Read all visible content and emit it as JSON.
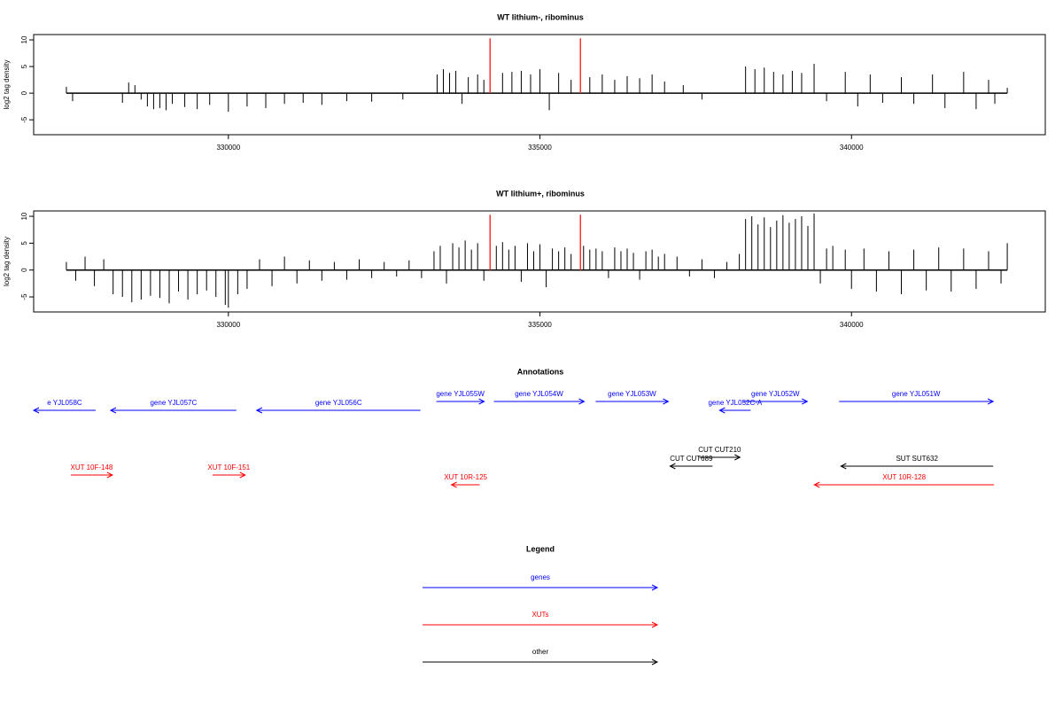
{
  "chart_data": [
    {
      "type": "bar",
      "title": "WT lithium-, ribominus",
      "ylabel": "log2 tag density",
      "color": "#000000",
      "xlim": [
        326875,
        343110
      ],
      "ylim": [
        -7.8,
        11
      ],
      "xticks": [
        330000,
        335000,
        340000
      ],
      "yticks": [
        -5,
        0,
        5,
        10
      ],
      "x": [
        327400,
        327500,
        328300,
        328400,
        328500,
        328600,
        328700,
        328800,
        328900,
        329000,
        329100,
        329300,
        329500,
        329700,
        330000,
        330300,
        330600,
        330900,
        331200,
        331500,
        331900,
        332300,
        332800,
        333350,
        333450,
        333550,
        333650,
        333750,
        333850,
        334000,
        334100,
        334400,
        334550,
        334700,
        334850,
        335000,
        335150,
        335300,
        335500,
        335800,
        336000,
        336200,
        336400,
        336600,
        336800,
        337000,
        337300,
        337600,
        338300,
        338450,
        338600,
        338750,
        338900,
        339050,
        339200,
        339400,
        339600,
        339900,
        340100,
        340300,
        340500,
        340800,
        341000,
        341300,
        341500,
        341800,
        342000,
        342200,
        342300,
        342500
      ],
      "values": [
        1.2,
        -1.5,
        -1.8,
        2.0,
        1.5,
        -1.2,
        -2.5,
        -3.0,
        -2.8,
        -3.2,
        -2.0,
        -2.6,
        -3.0,
        -2.2,
        -3.5,
        -2.5,
        -2.8,
        -2.0,
        -1.8,
        -2.2,
        -1.5,
        -1.6,
        -1.2,
        3.5,
        4.5,
        3.8,
        4.2,
        -2.0,
        3.0,
        3.5,
        2.5,
        3.8,
        4.0,
        4.2,
        3.5,
        4.5,
        -3.2,
        3.8,
        2.5,
        3.0,
        3.5,
        2.5,
        3.2,
        2.8,
        3.5,
        2.2,
        1.5,
        -1.2,
        5.0,
        4.5,
        4.8,
        4.0,
        3.5,
        4.2,
        3.8,
        5.5,
        -1.5,
        4.0,
        -2.5,
        3.5,
        -1.8,
        3.0,
        -2.0,
        3.5,
        -2.8,
        4.0,
        -3.0,
        2.5,
        -2.0,
        1.0
      ],
      "markers": {
        "color": "#ff3030",
        "x": [
          334200,
          335650
        ],
        "values": [
          10.3,
          10.3
        ]
      }
    },
    {
      "type": "bar",
      "title": "WT lithium+, ribominus",
      "ylabel": "log2 tag density",
      "color": "#000000",
      "xlim": [
        326875,
        343110
      ],
      "ylim": [
        -7.8,
        11
      ],
      "xticks": [
        330000,
        335000,
        340000
      ],
      "yticks": [
        -5,
        0,
        5,
        10
      ],
      "x": [
        327400,
        327550,
        327700,
        327850,
        328000,
        328150,
        328300,
        328450,
        328600,
        328750,
        328900,
        329050,
        329200,
        329350,
        329500,
        329650,
        329800,
        329950,
        330000,
        330150,
        330300,
        330500,
        330700,
        330900,
        331100,
        331300,
        331500,
        331700,
        331900,
        332100,
        332300,
        332500,
        332700,
        332900,
        333100,
        333300,
        333400,
        333500,
        333600,
        333700,
        333800,
        333900,
        334000,
        334100,
        334300,
        334400,
        334500,
        334600,
        334700,
        334800,
        334900,
        335000,
        335100,
        335200,
        335300,
        335400,
        335500,
        335700,
        335800,
        335900,
        336000,
        336100,
        336200,
        336300,
        336400,
        336500,
        336600,
        336700,
        336800,
        336900,
        337000,
        337200,
        337400,
        337600,
        337800,
        338000,
        338200,
        338300,
        338400,
        338500,
        338600,
        338700,
        338800,
        338900,
        339000,
        339100,
        339200,
        339300,
        339400,
        339500,
        339600,
        339700,
        339900,
        340000,
        340200,
        340400,
        340600,
        340800,
        341000,
        341200,
        341400,
        341600,
        341800,
        342000,
        342200,
        342400,
        342500
      ],
      "values": [
        1.5,
        -2.0,
        2.5,
        -3.0,
        2.0,
        -4.5,
        -5.0,
        -6.0,
        -5.5,
        -4.8,
        -5.2,
        -6.2,
        -4.0,
        -5.5,
        -4.5,
        -3.8,
        -5.0,
        -6.5,
        -7.0,
        -4.5,
        -3.5,
        2.0,
        -3.0,
        2.5,
        -2.5,
        1.8,
        -2.0,
        1.5,
        -1.8,
        2.0,
        -1.5,
        1.5,
        -1.2,
        1.8,
        -1.5,
        3.5,
        4.5,
        -2.5,
        5.0,
        4.2,
        5.5,
        3.8,
        5.0,
        -2.0,
        4.5,
        5.2,
        3.8,
        4.5,
        -2.2,
        5.0,
        3.5,
        4.8,
        -3.2,
        4.0,
        3.5,
        4.2,
        3.0,
        4.5,
        3.8,
        4.0,
        3.5,
        -1.5,
        4.2,
        3.5,
        4.0,
        3.2,
        -1.8,
        3.5,
        3.8,
        2.5,
        3.0,
        2.5,
        -1.2,
        2.0,
        -1.5,
        1.5,
        3.0,
        9.5,
        10.0,
        8.5,
        9.8,
        8.0,
        9.2,
        10.2,
        8.8,
        9.5,
        10.0,
        8.2,
        10.5,
        -2.5,
        4.0,
        4.5,
        3.8,
        -3.5,
        4.0,
        -4.0,
        3.5,
        -4.5,
        3.8,
        -3.8,
        4.2,
        -4.0,
        4.0,
        -3.5,
        3.5,
        -2.5,
        5.0
      ],
      "markers": {
        "color": "#ff3030",
        "x": [
          334200,
          335650
        ],
        "values": [
          10.3,
          10.3
        ]
      }
    }
  ],
  "annotations": {
    "title": "Annotations",
    "xlim": [
      326875,
      343110
    ],
    "groups": [
      {
        "label": "genes",
        "color": "#0000ff",
        "features": [
          {
            "label": "e YJL058C",
            "start": 327869,
            "end": 326875
          },
          {
            "label": "gene YJL057C",
            "start": 330128,
            "end": 328111
          },
          {
            "label": "gene YJL056C",
            "start": 333082,
            "end": 330455
          },
          {
            "label": "gene YJL055W",
            "start": 333338,
            "end": 334105
          },
          {
            "label": "gene YJL054W",
            "start": 334261,
            "end": 335710
          },
          {
            "label": "gene YJL053W",
            "start": 335895,
            "end": 337060
          },
          {
            "label": "gene YJL052C-A",
            "start": 338381,
            "end": 337884
          },
          {
            "label": "gene YJL052W",
            "start": 338267,
            "end": 339290
          },
          {
            "label": "gene YJL051W",
            "start": 339801,
            "end": 342273
          }
        ]
      },
      {
        "label": "XUTs",
        "color": "#ff0000",
        "features": [
          {
            "label": "XUT 10F-148",
            "start": 327472,
            "end": 328139
          },
          {
            "label": "XUT 10F-151",
            "start": 329744,
            "end": 330270
          },
          {
            "label": "XUT 10R-125",
            "start": 334034,
            "end": 333580
          },
          {
            "label": "XUT 10R-128",
            "start": 342287,
            "end": 339403
          }
        ]
      },
      {
        "label": "other",
        "color": "#000000",
        "features": [
          {
            "label": "SUT SUT632",
            "start": 342273,
            "end": 339830
          },
          {
            "label": "CUT CUT210",
            "start": 337557,
            "end": 338210
          },
          {
            "label": "CUT CUT689",
            "start": 337770,
            "end": 337088
          }
        ]
      }
    ]
  },
  "legend": {
    "title": "Legend"
  }
}
